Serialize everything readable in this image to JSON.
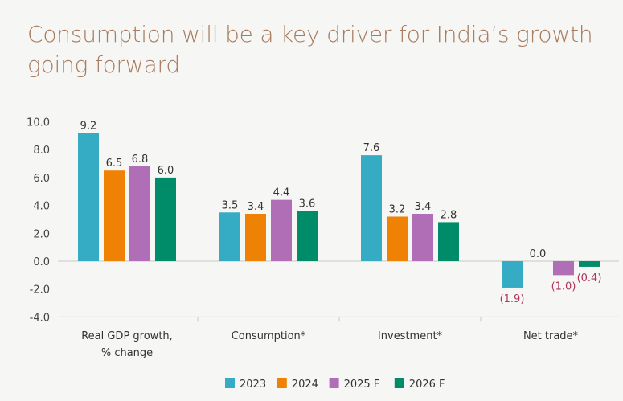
{
  "title": "Consumption will be a key driver for India’s growth going forward",
  "colors": {
    "2023": "#35abc4",
    "2024": "#ef8105",
    "2025 F": "#b06eb7",
    "2026 F": "#008c68",
    "negative_label": "#b2335c"
  },
  "chart_data": {
    "type": "bar",
    "title": "Consumption will be a key driver for India’s growth going forward",
    "categories": [
      "Real GDP growth,\n% change",
      "Consumption*",
      "Investment*",
      "Net trade*"
    ],
    "series": [
      {
        "name": "2023",
        "values": [
          9.2,
          3.5,
          7.6,
          -1.9
        ],
        "labels": [
          "9.2",
          "3.5",
          "7.6",
          "(1.9)"
        ]
      },
      {
        "name": "2024",
        "values": [
          6.5,
          3.4,
          3.2,
          0.0
        ],
        "labels": [
          "6.5",
          "3.4",
          "3.2",
          "0.0"
        ]
      },
      {
        "name": "2025 F",
        "values": [
          6.8,
          4.4,
          3.4,
          -1.0
        ],
        "labels": [
          "6.8",
          "4.4",
          "3.4",
          "(1.0)"
        ]
      },
      {
        "name": "2026 F",
        "values": [
          6.0,
          3.6,
          2.8,
          -0.4
        ],
        "labels": [
          "6.0",
          "3.6",
          "2.8",
          "(0.4)"
        ]
      }
    ],
    "yticks": [
      "10.0",
      "8.0",
      "6.0",
      "4.0",
      "2.0",
      "0.0",
      "-2.0",
      "-4.0"
    ],
    "ylim": [
      -4,
      10
    ],
    "grid": false,
    "legend_position": "bottom-center"
  }
}
